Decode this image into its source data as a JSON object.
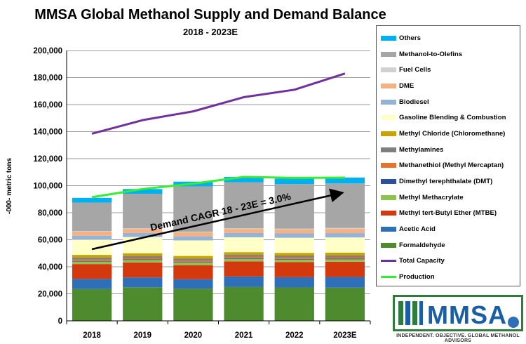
{
  "chart_data": {
    "type": "bar",
    "stacked": true,
    "title": "MMSA Global Methanol Supply and Demand Balance",
    "subtitle": "2018 - 2023E",
    "xlabel": "",
    "ylabel": "-000- metric tons",
    "ylim": [
      0,
      200000
    ],
    "ytick_step": 20000,
    "ytick_labels": [
      "0",
      "20,000",
      "40,000",
      "60,000",
      "80,000",
      "100,000",
      "120,000",
      "140,000",
      "160,000",
      "180,000",
      "200,000"
    ],
    "grid": true,
    "legend_position": "right",
    "categories": [
      "2018",
      "2019",
      "2020",
      "2021",
      "2022",
      "2023E"
    ],
    "series": [
      {
        "name": "Formaldehyde",
        "color": "#4e8a2e",
        "values": [
          23500,
          24800,
          23800,
          25000,
          24700,
          24500
        ]
      },
      {
        "name": "Acetic Acid",
        "color": "#2e6fb8",
        "values": [
          7500,
          7300,
          7000,
          7800,
          7600,
          8000
        ]
      },
      {
        "name": "Methyl tert-Butyl Ether (MTBE)",
        "color": "#d4380d",
        "values": [
          11000,
          11100,
          10400,
          11200,
          11200,
          11200
        ]
      },
      {
        "name": "Methyl Methacrylate",
        "color": "#8dc351",
        "values": [
          1800,
          1800,
          1800,
          1800,
          1800,
          1800
        ]
      },
      {
        "name": "Dimethyl terephthalate (DMT)",
        "color": "#2f4f9f",
        "values": [
          500,
          500,
          500,
          500,
          500,
          500
        ]
      },
      {
        "name": "Methanethiol (Methyl Mercaptan)",
        "color": "#e8742c",
        "values": [
          1000,
          1000,
          1000,
          1000,
          1000,
          1000
        ]
      },
      {
        "name": "Methylamines",
        "color": "#7f7f7f",
        "values": [
          1500,
          1500,
          1500,
          1500,
          1500,
          1500
        ]
      },
      {
        "name": "Methyl Chloride (Chloromethane)",
        "color": "#c9a400",
        "values": [
          2000,
          2000,
          2000,
          2000,
          2000,
          2000
        ]
      },
      {
        "name": "Gasoline Blending & Combustion",
        "color": "#ffffc7",
        "values": [
          11200,
          12000,
          11500,
          11000,
          11200,
          11200
        ]
      },
      {
        "name": "Biodiesel",
        "color": "#95b3d7",
        "values": [
          3000,
          3000,
          3000,
          3200,
          3200,
          3200
        ]
      },
      {
        "name": "DME",
        "color": "#f4b183",
        "values": [
          3000,
          3000,
          3000,
          3000,
          3000,
          3200
        ]
      },
      {
        "name": "Fuel Cells",
        "color": "#d0d0d0",
        "values": [
          500,
          500,
          500,
          500,
          500,
          600
        ]
      },
      {
        "name": "Methanol-to-Olefins",
        "color": "#a6a6a6",
        "values": [
          21000,
          25500,
          33500,
          34000,
          33000,
          33000
        ]
      },
      {
        "name": "Others",
        "color": "#00b0f0",
        "values": [
          3500,
          3500,
          3500,
          4000,
          4000,
          4300
        ]
      }
    ],
    "lines": [
      {
        "name": "Total Capacity",
        "color": "#7030a0",
        "values": [
          138500,
          148500,
          155000,
          165500,
          171000,
          183000
        ]
      },
      {
        "name": "Production",
        "color": "#33ee33",
        "values": [
          91500,
          97500,
          101500,
          106500,
          105800,
          106000
        ]
      }
    ],
    "annotation": {
      "text": "Demand CAGR 18 - 23E = 3.0%",
      "arrow_from": [
        "2018",
        53000
      ],
      "arrow_to": [
        "2023E",
        95000
      ]
    }
  },
  "legend_order": [
    13,
    12,
    11,
    10,
    9,
    8,
    7,
    6,
    5,
    4,
    3,
    2,
    1,
    0
  ],
  "logo": {
    "text": "MMSA",
    "tagline": "INDEPENDENT. OBJECTIVE. GLOBAL METHANOL ADVISORS"
  }
}
